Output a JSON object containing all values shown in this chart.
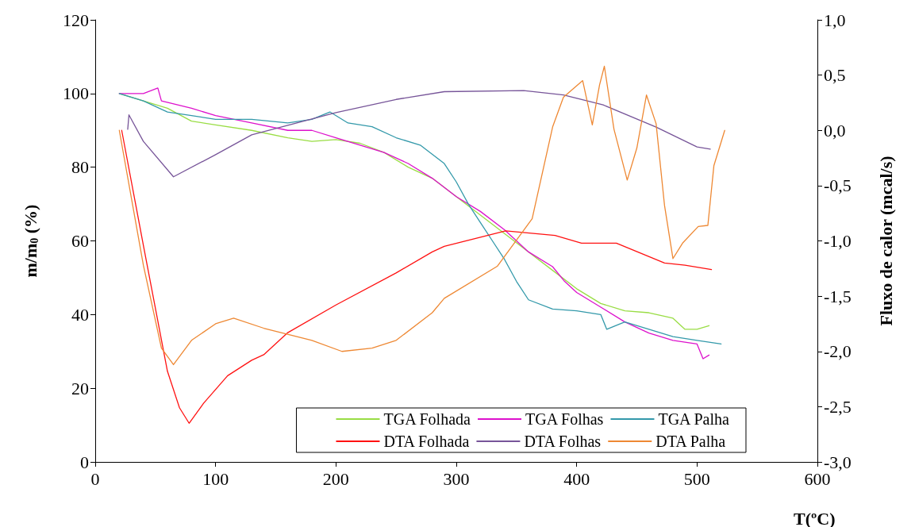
{
  "chart_data": {
    "type": "line",
    "xlabel": "T(ºC)",
    "ylabel": "m/m$_{0}$ (%)",
    "y2label": "Fluxo de calor (mcal/s)",
    "xlim": [
      0,
      600
    ],
    "xticks": [
      0,
      100,
      200,
      300,
      400,
      500,
      600
    ],
    "ylim": [
      0,
      120
    ],
    "yticks": [
      0,
      20,
      40,
      60,
      80,
      100,
      120
    ],
    "y2lim": [
      -3,
      1
    ],
    "y2ticks": [
      {
        "value": -3,
        "label": "-3,0"
      },
      {
        "value": -2.5,
        "label": "-2,5"
      },
      {
        "value": -2,
        "label": "-2,0"
      },
      {
        "value": -1.5,
        "label": "-1,5"
      },
      {
        "value": -1,
        "label": "-1,0"
      },
      {
        "value": -0.5,
        "label": "-0,5"
      },
      {
        "value": 0,
        "label": "0,0"
      },
      {
        "value": 0.5,
        "label": "0,5"
      },
      {
        "value": 1,
        "label": "1,0"
      }
    ],
    "grid": false,
    "legend": "bottom right",
    "marker": "none",
    "line_style": "solid",
    "series": [
      {
        "name": "TGA Folhada",
        "color": "#99dd44",
        "x": [
          20,
          40,
          60,
          80,
          100,
          130,
          160,
          180,
          200,
          220,
          240,
          260,
          280,
          300,
          320,
          340,
          360,
          380,
          400,
          420,
          440,
          460,
          480,
          490,
          500,
          510
        ],
        "values": [
          100,
          98,
          96,
          92.5,
          91.5,
          90,
          88,
          87,
          87.5,
          86.5,
          84,
          80,
          77,
          72,
          67,
          62,
          57,
          52,
          47,
          43,
          41,
          40.5,
          39,
          36,
          36,
          37
        ]
      },
      {
        "name": "TGA Folhas",
        "color": "#dd11cc",
        "x": [
          20,
          40,
          52,
          55,
          80,
          100,
          130,
          160,
          180,
          200,
          220,
          240,
          260,
          280,
          300,
          320,
          340,
          360,
          380,
          390,
          400,
          420,
          440,
          460,
          480,
          500,
          505,
          510
        ],
        "values": [
          100,
          100,
          101.5,
          98,
          96,
          94,
          92,
          90,
          90,
          88,
          86,
          84,
          81,
          77,
          72,
          68,
          63,
          57,
          53,
          49,
          46,
          42,
          38,
          35,
          33,
          32,
          28,
          29
        ]
      },
      {
        "name": "TGA Palha",
        "color": "#3399aa",
        "x": [
          20,
          40,
          60,
          80,
          100,
          130,
          160,
          180,
          195,
          210,
          230,
          250,
          270,
          290,
          300,
          310,
          320,
          330,
          340,
          350,
          360,
          380,
          400,
          420,
          425,
          440,
          460,
          480,
          500,
          520
        ],
        "values": [
          100,
          98,
          95,
          94,
          93,
          93,
          92,
          93,
          95,
          92,
          91,
          88,
          86,
          81,
          76,
          70,
          65,
          60,
          55,
          49,
          44,
          41.5,
          41,
          40,
          36,
          38,
          36,
          34,
          33,
          32
        ]
      },
      {
        "name": "DTA Folhada",
        "color": "#ff1111",
        "axis": "y2",
        "x": [
          22,
          40,
          60,
          70,
          78,
          90,
          110,
          130,
          140,
          160,
          200,
          250,
          280,
          290,
          341,
          382,
          404,
          433,
          473,
          490,
          512
        ],
        "values": [
          0,
          -1.04,
          -2.18,
          -2.51,
          -2.65,
          -2.47,
          -2.22,
          -2.08,
          -2.03,
          -1.83,
          -1.58,
          -1.29,
          -1.1,
          -1.05,
          -0.91,
          -0.95,
          -1.02,
          -1.02,
          -1.2,
          -1.22,
          -1.26
        ]
      },
      {
        "name": "DTA Folhas",
        "color": "#775599",
        "axis": "y2",
        "x": [
          27,
          28,
          40,
          65,
          100,
          130,
          200,
          250,
          290,
          356,
          389,
          422,
          466,
          500,
          511
        ],
        "values": [
          0.01,
          0.14,
          -0.1,
          -0.42,
          -0.22,
          -0.04,
          0.16,
          0.28,
          0.35,
          0.36,
          0.32,
          0.23,
          0.03,
          -0.15,
          -0.17
        ]
      },
      {
        "name": "DTA Palha",
        "color": "#ee8833",
        "axis": "y2",
        "x": [
          20,
          40,
          55,
          65,
          80,
          100,
          115,
          140,
          180,
          205,
          230,
          250,
          280,
          290,
          334,
          363,
          380,
          389,
          405,
          413,
          419,
          423,
          431,
          442,
          450,
          458,
          466,
          473,
          480,
          488,
          501,
          509,
          514,
          523
        ],
        "values": [
          0,
          -1.22,
          -1.97,
          -2.12,
          -1.9,
          -1.75,
          -1.7,
          -1.79,
          -1.9,
          -2,
          -1.97,
          -1.9,
          -1.65,
          -1.52,
          -1.23,
          -0.8,
          0.03,
          0.3,
          0.45,
          0.05,
          0.41,
          0.58,
          0.01,
          -0.45,
          -0.16,
          0.32,
          0.06,
          -0.68,
          -1.16,
          -1.02,
          -0.87,
          -0.86,
          -0.32,
          0
        ]
      }
    ]
  }
}
